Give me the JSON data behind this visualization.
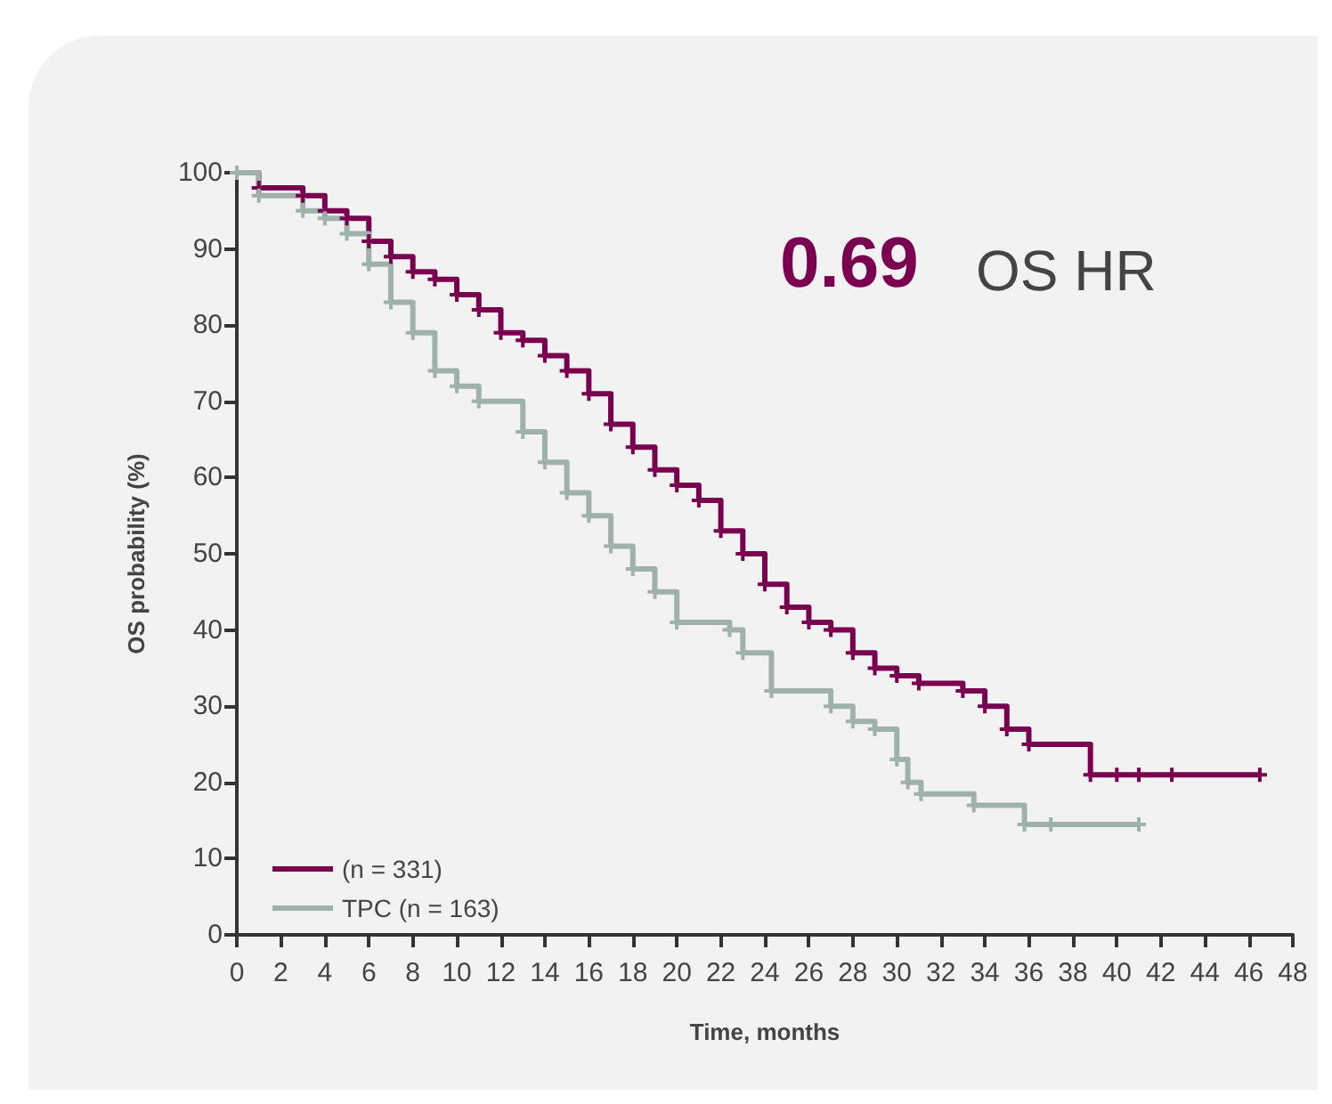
{
  "chart_data": {
    "type": "step",
    "xlabel": "Time, months",
    "ylabel": "OS probability (%)",
    "xlim": [
      0,
      48
    ],
    "xticks": [
      0,
      2,
      4,
      6,
      8,
      10,
      12,
      14,
      16,
      18,
      20,
      22,
      24,
      26,
      28,
      30,
      32,
      34,
      36,
      38,
      40,
      42,
      44,
      46,
      48
    ],
    "ylim": [
      0,
      100
    ],
    "yticks": [
      0,
      10,
      20,
      30,
      40,
      50,
      60,
      70,
      80,
      90,
      100
    ],
    "grid": false,
    "legend": "bottom left",
    "marker": "cross",
    "line_style": "solid",
    "annotations": [
      "0.69",
      "OS HR"
    ],
    "series": [
      {
        "name": "(n = 331)",
        "color": "#7a0050",
        "x": [
          0,
          1,
          3,
          4,
          5,
          6,
          7,
          8,
          9,
          10,
          11,
          12,
          13,
          14,
          15,
          16,
          17,
          18,
          19,
          20,
          21,
          22,
          23,
          24,
          25,
          26,
          27,
          28,
          29,
          30,
          31,
          33,
          34,
          35,
          36,
          38.8,
          40,
          41,
          42.5,
          46.5
        ],
        "values": [
          100,
          98,
          97,
          95,
          94,
          91,
          89,
          87,
          86,
          84,
          82,
          79,
          78,
          76,
          74,
          71,
          67,
          64,
          61,
          59,
          57,
          53,
          50,
          46,
          43,
          41,
          40,
          37,
          35,
          34,
          33,
          32,
          30,
          27,
          25,
          21,
          21,
          21,
          21,
          21
        ]
      },
      {
        "name": "TPC (n = 163)",
        "color": "#9fb1ab",
        "x": [
          0,
          1,
          3,
          4,
          5,
          6,
          7,
          8,
          9,
          10,
          11,
          13,
          14,
          15,
          16,
          17,
          18,
          19,
          20,
          22.4,
          23,
          24.3,
          27,
          28,
          29,
          30,
          30.5,
          31.1,
          33.5,
          35.8,
          37,
          41
        ],
        "values": [
          100,
          97,
          95,
          94,
          92,
          88,
          83,
          79,
          74,
          72,
          70,
          66,
          62,
          58,
          55,
          51,
          48,
          45,
          41,
          40,
          37,
          32,
          30,
          28,
          27,
          23,
          20,
          18.5,
          17,
          14.5,
          14.5,
          14.5
        ]
      }
    ]
  }
}
